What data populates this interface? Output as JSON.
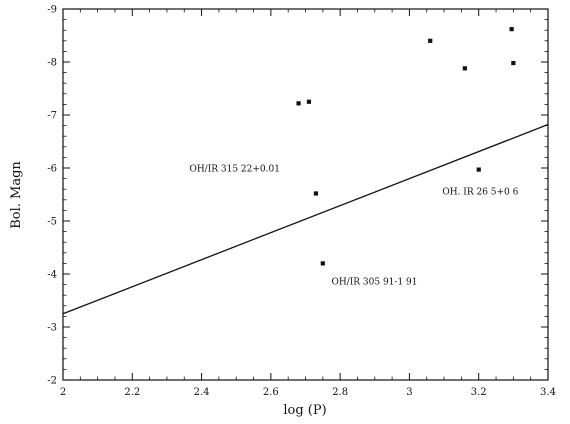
{
  "chart_data": {
    "type": "scatter",
    "xlabel": "log (P)",
    "ylabel": "Bol. Magn",
    "xlim": [
      2,
      3.4
    ],
    "ylim": [
      -2,
      -9
    ],
    "y_inverted": true,
    "grid": false,
    "x_ticks": [
      "2",
      "2.2",
      "2.4",
      "2.6",
      "2.8",
      "3",
      "3.2",
      "3.4"
    ],
    "y_ticks": [
      "-2",
      "-3",
      "-4",
      "-5",
      "-6",
      "-7",
      "-8",
      "-9"
    ],
    "x_tick_values": [
      2,
      2.2,
      2.4,
      2.6,
      2.8,
      3,
      3.2,
      3.4
    ],
    "y_tick_values": [
      -2,
      -3,
      -4,
      -5,
      -6,
      -7,
      -8,
      -9
    ],
    "points": [
      {
        "x": 2.68,
        "y": -7.22
      },
      {
        "x": 2.71,
        "y": -7.25
      },
      {
        "x": 2.73,
        "y": -5.52
      },
      {
        "x": 2.75,
        "y": -4.2
      },
      {
        "x": 3.06,
        "y": -8.4
      },
      {
        "x": 3.16,
        "y": -7.88
      },
      {
        "x": 3.2,
        "y": -5.97
      },
      {
        "x": 3.3,
        "y": -7.98
      },
      {
        "x": 3.295,
        "y": -8.62
      }
    ],
    "fit_line": {
      "x": [
        2,
        3.4
      ],
      "y": [
        -3.25,
        -6.82
      ]
    },
    "annotations": [
      {
        "text": "OH/IR 315 22+0.01",
        "x": 2.365,
        "y": -5.93
      },
      {
        "text": "OH. IR 26 5+0 6",
        "x": 3.095,
        "y": -5.5
      },
      {
        "text": "OH/IR 305 91-1 91",
        "x": 2.775,
        "y": -3.8
      }
    ]
  }
}
